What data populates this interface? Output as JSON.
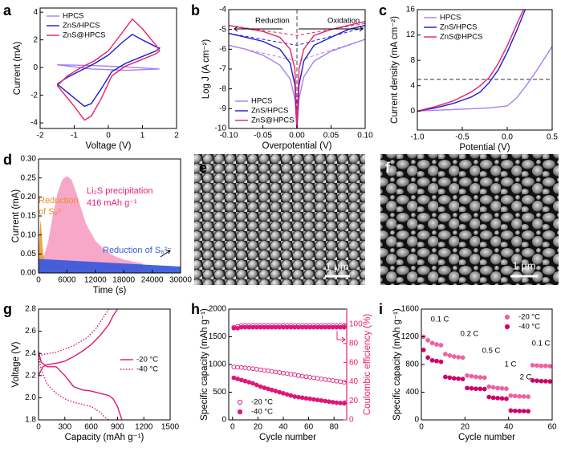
{
  "chart_data": [
    {
      "panel_label": "a",
      "type": "line",
      "xlabel": "Voltage (V)",
      "ylabel": "Current (mA)",
      "xlim": [
        -2,
        2
      ],
      "xticks": [
        -2,
        -1,
        0,
        1,
        2
      ],
      "ylim": [
        -4.4,
        4.3
      ],
      "yticks": [
        -4,
        -2,
        0,
        2,
        4
      ],
      "legend": "upper left",
      "series": [
        {
          "name": "HPCS",
          "color": "#a77ff0",
          "x": [
            -1.5,
            -0.5,
            0.5,
            1.5,
            0.5,
            -0.5,
            -1.5
          ],
          "values": [
            0.2,
            0.15,
            0.05,
            -0.1,
            -0.2,
            -0.1,
            0.2
          ]
        },
        {
          "name": "ZnS/HPCS",
          "color": "#1a1ad8",
          "x": [
            -1.5,
            -1.2,
            -0.8,
            -0.4,
            0,
            0.4,
            0.7,
            1.0,
            1.4,
            1.5,
            1.4,
            1.0,
            0.5,
            0.1,
            -0.2,
            -0.5,
            -0.7,
            -1.0,
            -1.3,
            -1.5
          ],
          "values": [
            -1.2,
            -0.7,
            -0.2,
            0.3,
            0.9,
            1.8,
            2.4,
            2.0,
            1.5,
            1.4,
            1.2,
            0.8,
            0.3,
            -0.3,
            -1.5,
            -2.6,
            -2.8,
            -2.2,
            -1.6,
            -1.2
          ]
        },
        {
          "name": "ZnS@HPCS",
          "color": "#e8206a",
          "x": [
            -1.5,
            -1.2,
            -0.8,
            -0.4,
            0,
            0.4,
            0.7,
            1.0,
            1.4,
            1.5,
            1.4,
            1.0,
            0.5,
            0.1,
            -0.2,
            -0.5,
            -0.7,
            -1.0,
            -1.3,
            -1.5
          ],
          "values": [
            -1.3,
            -0.6,
            0,
            0.5,
            1.2,
            2.5,
            3.5,
            2.8,
            1.6,
            1.2,
            1.0,
            0.6,
            0.1,
            -0.6,
            -2.2,
            -3.5,
            -3.8,
            -2.8,
            -1.9,
            -1.3
          ]
        }
      ]
    },
    {
      "panel_label": "b",
      "type": "line",
      "xlabel": "Overpotential (V)",
      "ylabel": "Log J (A cm⁻²)",
      "xlim": [
        -0.1,
        0.1
      ],
      "xticks": [
        {
          "value": -0.1,
          "label": "-0.10"
        },
        {
          "value": -0.05,
          "label": "-0.05"
        },
        {
          "value": 0,
          "label": "0.00"
        },
        {
          "value": 0.05,
          "label": "0.05"
        },
        {
          "value": 0.1,
          "label": "0.10"
        }
      ],
      "ylim": [
        -10,
        -4
      ],
      "yticks": [
        -10,
        -9,
        -8,
        -7,
        -6,
        -5,
        -4
      ],
      "legend": "lower left",
      "reference_line": {
        "axis": "x",
        "value": 0
      },
      "annotations": [
        "Reduction",
        "Oxidation"
      ],
      "x": [
        -0.1,
        -0.075,
        -0.05,
        -0.025,
        -0.01,
        -0.003,
        0,
        0.003,
        0.01,
        0.025,
        0.05,
        0.075,
        0.1
      ],
      "fit_x": [
        -0.1,
        0,
        0.1
      ],
      "series": [
        {
          "name": "HPCS",
          "color": "#a77ff0",
          "values": [
            -5.8,
            -6.0,
            -6.3,
            -6.8,
            -7.5,
            -8.5,
            -10,
            -8.5,
            -7.4,
            -6.6,
            -6.1,
            -5.8,
            -5.5
          ],
          "fit": [
            -5.8,
            -6.6,
            -5.5
          ]
        },
        {
          "name": "ZnS/HPCS",
          "color": "#1a1ad8",
          "values": [
            -5.2,
            -5.4,
            -5.6,
            -6.0,
            -6.7,
            -7.8,
            -10,
            -7.8,
            -6.6,
            -5.8,
            -5.4,
            -5.0,
            -4.8
          ],
          "fit": [
            -5.2,
            -5.8,
            -4.9
          ]
        },
        {
          "name": "ZnS@HPCS",
          "color": "#e8206a",
          "values": [
            -4.8,
            -4.95,
            -5.1,
            -5.4,
            -6.0,
            -7.0,
            -10,
            -7.0,
            -6.0,
            -5.3,
            -5.0,
            -4.8,
            -4.6
          ],
          "fit": [
            -4.8,
            -5.3,
            -4.7
          ]
        }
      ]
    },
    {
      "panel_label": "c",
      "type": "line",
      "xlabel": "Potential (V)",
      "ylabel": "Current density (mA cm⁻²)",
      "xlim": [
        -1,
        0.5
      ],
      "xticks": [
        {
          "value": -1,
          "label": "-1.0"
        },
        -0.5,
        {
          "value": 0,
          "label": "0.0"
        },
        0.5
      ],
      "ylim": [
        -3,
        16
      ],
      "yticks": [
        0,
        4,
        8,
        12,
        16
      ],
      "legend": "upper left",
      "reference_line": {
        "axis": "y",
        "value": 5
      },
      "series": [
        {
          "name": "HPCS",
          "color": "#a77ff0",
          "x": [
            -1,
            -0.5,
            -0.2,
            0,
            0.1,
            0.2,
            0.3,
            0.4,
            0.5
          ],
          "values": [
            0,
            0.3,
            0.5,
            0.8,
            2,
            3.8,
            5.8,
            8,
            10.2
          ]
        },
        {
          "name": "ZnS/HPCS",
          "color": "#1a1ad8",
          "x": [
            -1,
            -0.8,
            -0.6,
            -0.4,
            -0.3,
            -0.2,
            -0.1,
            0,
            0.1,
            0.2
          ],
          "values": [
            0,
            0.5,
            1.2,
            2.2,
            3,
            4.5,
            6.5,
            9.3,
            12.5,
            16
          ]
        },
        {
          "name": "ZnS@HPCS",
          "color": "#e8206a",
          "x": [
            -1,
            -0.8,
            -0.6,
            -0.4,
            -0.3,
            -0.2,
            -0.1,
            0,
            0.1,
            0.18
          ],
          "values": [
            0,
            0.7,
            1.6,
            3,
            4,
            5.3,
            7.5,
            10.3,
            13.5,
            16
          ]
        }
      ]
    },
    {
      "panel_label": "d",
      "type": "area",
      "xlabel": "Time (s)",
      "ylabel": "Current (mA)",
      "xlim": [
        0,
        30000
      ],
      "xticks": [
        0,
        6000,
        12000,
        18000,
        24000,
        30000
      ],
      "ylim": [
        0,
        0.3
      ],
      "yticks": [
        {
          "value": 0,
          "label": "0.00"
        },
        {
          "value": 0.05,
          "label": "0.05"
        },
        {
          "value": 0.1,
          "label": "0.10"
        },
        {
          "value": 0.15,
          "label": "0.15"
        },
        {
          "value": 0.2,
          "label": "0.20"
        },
        {
          "value": 0.25,
          "label": "0.25"
        },
        {
          "value": 0.3,
          "label": "0.30"
        }
      ],
      "annotations": [
        "Reduction",
        "of S₈²⁻",
        "Li₂S precipitation",
        "416 mAh g⁻¹",
        "Reduction of S₆²⁻"
      ],
      "series": [
        {
          "color": "#f7a3c6",
          "x": [
            1000,
            2000,
            3000,
            4000,
            5000,
            6000,
            7000,
            8000,
            9000,
            10000,
            12000,
            14000,
            16000,
            18000,
            20000,
            22000
          ],
          "values": [
            0.04,
            0.08,
            0.15,
            0.21,
            0.245,
            0.255,
            0.245,
            0.21,
            0.17,
            0.13,
            0.085,
            0.06,
            0.045,
            0.035,
            0.03,
            0.025
          ]
        },
        {
          "color": "#f0a040",
          "x": [
            0,
            200,
            400,
            600,
            800,
            1000,
            1200
          ],
          "values": [
            0.04,
            0.09,
            0.14,
            0.12,
            0.08,
            0.05,
            0.04
          ]
        },
        {
          "color": "#3b5bdb",
          "x": [
            0,
            30000
          ],
          "values": [
            0.037,
            0.017
          ]
        }
      ]
    },
    {
      "panel_label": "g",
      "type": "line",
      "xlabel": "Capacity (mAh g⁻¹)",
      "ylabel": "Voltage (V)",
      "xlim": [
        0,
        1500
      ],
      "xticks": [
        0,
        300,
        600,
        900,
        1200,
        1500
      ],
      "ylim": [
        1.8,
        2.8
      ],
      "yticks": [
        1.8,
        {
          "value": 2,
          "label": "2.0"
        },
        2.2,
        2.4,
        2.6,
        2.8
      ],
      "legend": "center right",
      "series": [
        {
          "name": "-20 °C",
          "color": "#e0157a",
          "dash": "solid",
          "x": [
            0,
            30,
            100,
            200,
            300,
            400,
            500,
            600,
            700,
            800,
            850,
            900,
            950,
            null,
            0,
            50,
            100,
            200,
            300,
            400,
            500,
            600,
            700,
            800,
            850,
            900
          ],
          "values": [
            2.42,
            2.32,
            2.28,
            2.28,
            2.2,
            2.1,
            2.07,
            2.06,
            2.04,
            2.02,
            1.99,
            1.92,
            1.8,
            null,
            2.2,
            2.28,
            2.3,
            2.31,
            2.33,
            2.37,
            2.42,
            2.48,
            2.56,
            2.66,
            2.74,
            2.8
          ]
        },
        {
          "name": "-40 °C",
          "color": "#e0157a",
          "dash": "dotted",
          "x": [
            0,
            30,
            100,
            200,
            300,
            400,
            500,
            600,
            700,
            760,
            800,
            null,
            0,
            50,
            200,
            400,
            550,
            650,
            750,
            800
          ],
          "values": [
            2.38,
            2.25,
            2.12,
            2.04,
            1.99,
            1.96,
            1.94,
            1.92,
            1.87,
            1.82,
            1.8,
            null,
            2.38,
            2.39,
            2.41,
            2.47,
            2.54,
            2.62,
            2.74,
            2.8
          ]
        }
      ]
    },
    {
      "panel_label": "h",
      "type": "scatter",
      "xlabel": "Cycle number",
      "ylabel": "Specific capacity (mAh g⁻¹)",
      "y2label": "Coulombic efficiency (%)",
      "xlim": [
        -3,
        90
      ],
      "xticks": [
        0,
        20,
        40,
        60,
        80
      ],
      "ylim": [
        0,
        2000
      ],
      "yticks": [
        0,
        500,
        1000,
        1500,
        2000
      ],
      "y2lim": [
        0,
        116
      ],
      "y2ticks": [
        0,
        20,
        40,
        60,
        80,
        100
      ],
      "legend": "lower left",
      "x": [
        1,
        4,
        7,
        10,
        13,
        16,
        19,
        22,
        25,
        28,
        31,
        34,
        37,
        40,
        43,
        46,
        49,
        52,
        55,
        58,
        61,
        64,
        67,
        70,
        73,
        76,
        79,
        82,
        85,
        88
      ],
      "series": [
        {
          "name": "-20 °C",
          "color": "#e0157a",
          "marker": "open",
          "values": [
            955,
            950,
            945,
            940,
            930,
            925,
            915,
            905,
            895,
            885,
            875,
            865,
            855,
            845,
            835,
            825,
            815,
            800,
            790,
            780,
            770,
            760,
            750,
            740,
            730,
            720,
            710,
            700,
            690,
            680
          ]
        },
        {
          "name": "-40 °C",
          "color": "#e0157a",
          "marker": "filled",
          "values": [
            760,
            740,
            720,
            700,
            680,
            660,
            630,
            600,
            580,
            560,
            540,
            520,
            500,
            480,
            460,
            440,
            420,
            410,
            400,
            390,
            380,
            370,
            360,
            350,
            340,
            330,
            320,
            310,
            305,
            300
          ]
        },
        {
          "color": "#e0157a",
          "marker": "open",
          "axis": "y2",
          "values": [
            97,
            98,
            99,
            99,
            99,
            99,
            99,
            99,
            99,
            99,
            99,
            99,
            99,
            99,
            99,
            99,
            99,
            99,
            99,
            99,
            99,
            99,
            99,
            99,
            99,
            99,
            99,
            99,
            99,
            99
          ]
        },
        {
          "color": "#e0157a",
          "marker": "filled",
          "axis": "y2",
          "values": [
            96,
            96,
            97,
            97,
            97,
            97,
            97,
            97,
            97,
            97,
            97,
            97,
            97,
            97,
            97,
            97,
            97,
            97,
            97,
            97,
            97,
            97,
            97,
            97,
            97,
            97,
            97,
            97,
            97,
            97
          ]
        }
      ]
    },
    {
      "panel_label": "i",
      "type": "scatter",
      "xlabel": "Cycle number",
      "ylabel": "Specific capacity (mAh g⁻¹)",
      "xlim": [
        0,
        60
      ],
      "xticks": [
        0,
        20,
        40,
        60
      ],
      "ylim": [
        0,
        1600
      ],
      "yticks": [
        0,
        400,
        800,
        1200,
        1600
      ],
      "legend": "upper right",
      "annotations": [
        "0.1 C",
        "0.2 C",
        "0.5 C",
        "1 C",
        "2 C",
        "0.1 C"
      ],
      "x": [
        1,
        3,
        5,
        7,
        9,
        11,
        13,
        15,
        17,
        19,
        21,
        23,
        25,
        27,
        29,
        31,
        33,
        35,
        37,
        39,
        41,
        43,
        45,
        47,
        49,
        51,
        53,
        55,
        57,
        59
      ],
      "series": [
        {
          "name": "-20 °C",
          "color": "#f0609f",
          "marker": "filled",
          "values": [
            1200,
            1150,
            1110,
            1090,
            1080,
            950,
            930,
            915,
            905,
            900,
            640,
            630,
            620,
            615,
            610,
            480,
            470,
            460,
            455,
            450,
            350,
            345,
            340,
            338,
            335,
            790,
            785,
            780,
            780,
            775
          ]
        },
        {
          "name": "-40 °C",
          "color": "#d0006a",
          "marker": "filled",
          "values": [
            1010,
            900,
            860,
            850,
            840,
            620,
            610,
            600,
            595,
            590,
            460,
            455,
            450,
            448,
            445,
            330,
            320,
            315,
            310,
            305,
            135,
            130,
            128,
            127,
            125,
            570,
            565,
            560,
            558,
            555
          ]
        }
      ]
    }
  ],
  "images": [
    {
      "panel_label": "e",
      "scale_bar": "1 μm"
    },
    {
      "panel_label": "f",
      "scale_bar": "1 μm"
    }
  ]
}
